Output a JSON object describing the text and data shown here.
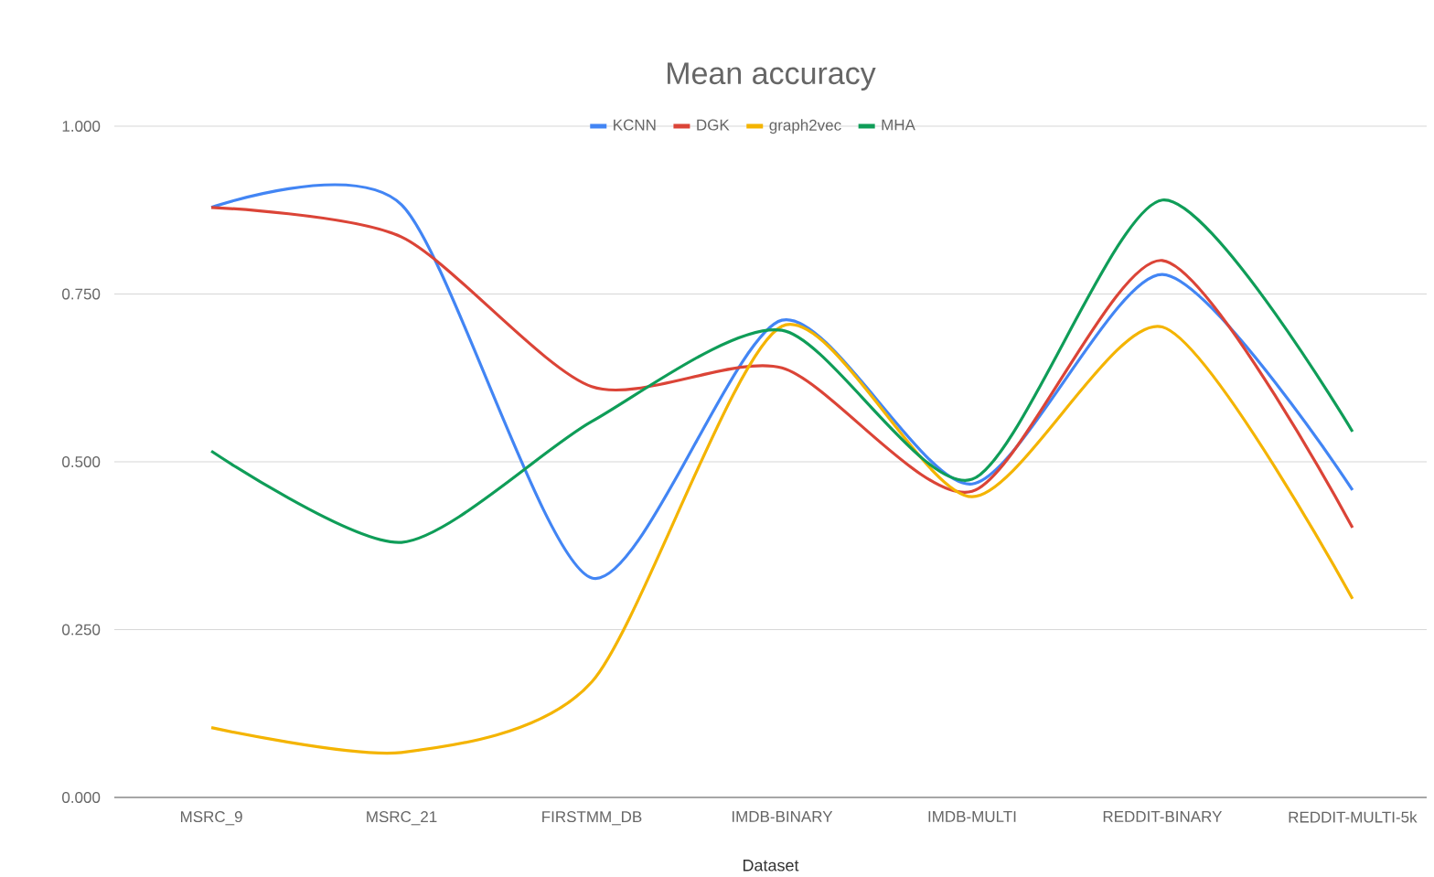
{
  "chart_data": {
    "type": "line",
    "title": "Mean accuracy",
    "xlabel": "Dataset",
    "categories": [
      "MSRC_9",
      "MSRC_21",
      "FIRSTMM_DB",
      "IMDB-BINARY",
      "IMDB-MULTI",
      "REDDIT-BINARY",
      "REDDIT-MULTI-5k"
    ],
    "series": [
      {
        "name": "KCNN",
        "color": "#4285f4",
        "values": [
          0.879,
          0.883,
          0.327,
          0.711,
          0.467,
          0.779,
          0.458
        ]
      },
      {
        "name": "DGK",
        "color": "#db4437",
        "values": [
          0.879,
          0.835,
          0.612,
          0.64,
          0.456,
          0.8,
          0.402
        ]
      },
      {
        "name": "graph2vec",
        "color": "#f4b400",
        "values": [
          0.104,
          0.067,
          0.172,
          0.702,
          0.448,
          0.701,
          0.296
        ]
      },
      {
        "name": "MHA",
        "color": "#0f9d58",
        "values": [
          0.516,
          0.38,
          0.56,
          0.696,
          0.474,
          0.89,
          0.545
        ]
      }
    ],
    "ylim": [
      0,
      1
    ],
    "yticks": [
      {
        "value": 0,
        "label": "0.000"
      },
      {
        "value": 0.25,
        "label": "0.250"
      },
      {
        "value": 0.5,
        "label": "0.500"
      },
      {
        "value": 0.75,
        "label": "0.750"
      },
      {
        "value": 1,
        "label": "1.000"
      }
    ],
    "grid": "y",
    "legend": "top",
    "marker": "none",
    "line_style": "solid"
  }
}
